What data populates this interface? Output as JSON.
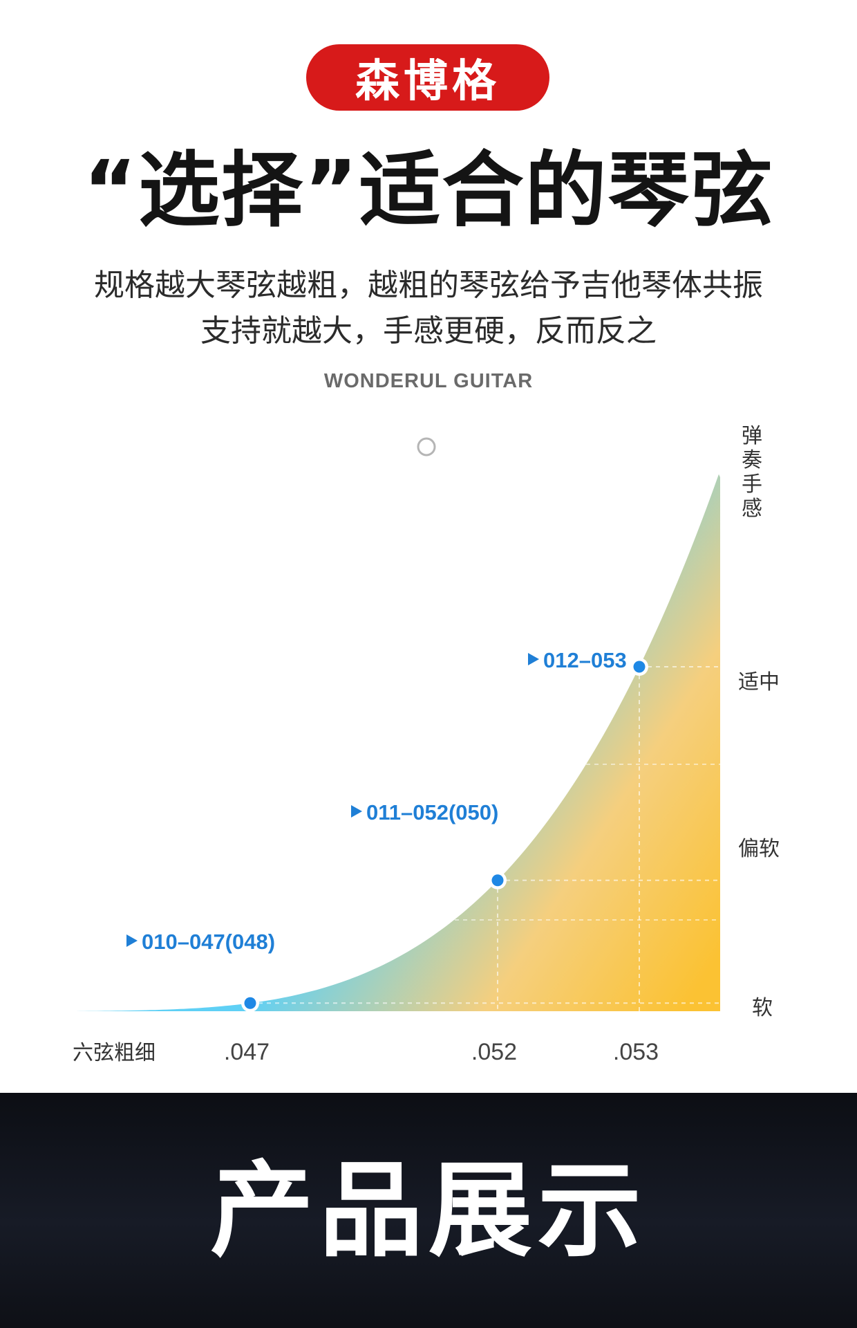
{
  "brand_badge": "森博格",
  "headline": "“选择”适合的琴弦",
  "subtitle_line1": "规格越大琴弦越粗，越粗的琴弦给予吉他琴体共振",
  "subtitle_line2": "支持就越大，手感更硬，反而反之",
  "brand_english": "WONDERUL GUITAR",
  "bottom_title": "产品展示",
  "colors": {
    "brand_red": "#d71a1a",
    "curve_blue": "#5fd0f5",
    "fill_orange": "#fbc233",
    "point_blue": "#1e88e5",
    "label_blue": "#1f7fd6"
  },
  "chart_data": {
    "type": "area",
    "xlabel": "六弦粗细",
    "ylabel": "弹奏手感",
    "x_ticks": [
      ".047",
      ".052",
      ".053"
    ],
    "y_levels": [
      "软",
      "偏软",
      "适中"
    ],
    "points": [
      {
        "x": ".047",
        "y": "软",
        "label": "010–047(048)"
      },
      {
        "x": ".052",
        "y": "偏软",
        "label": "011–052(050)"
      },
      {
        "x": ".053",
        "y": "适中",
        "label": "012–053"
      }
    ],
    "grid": true,
    "legend": "none"
  }
}
